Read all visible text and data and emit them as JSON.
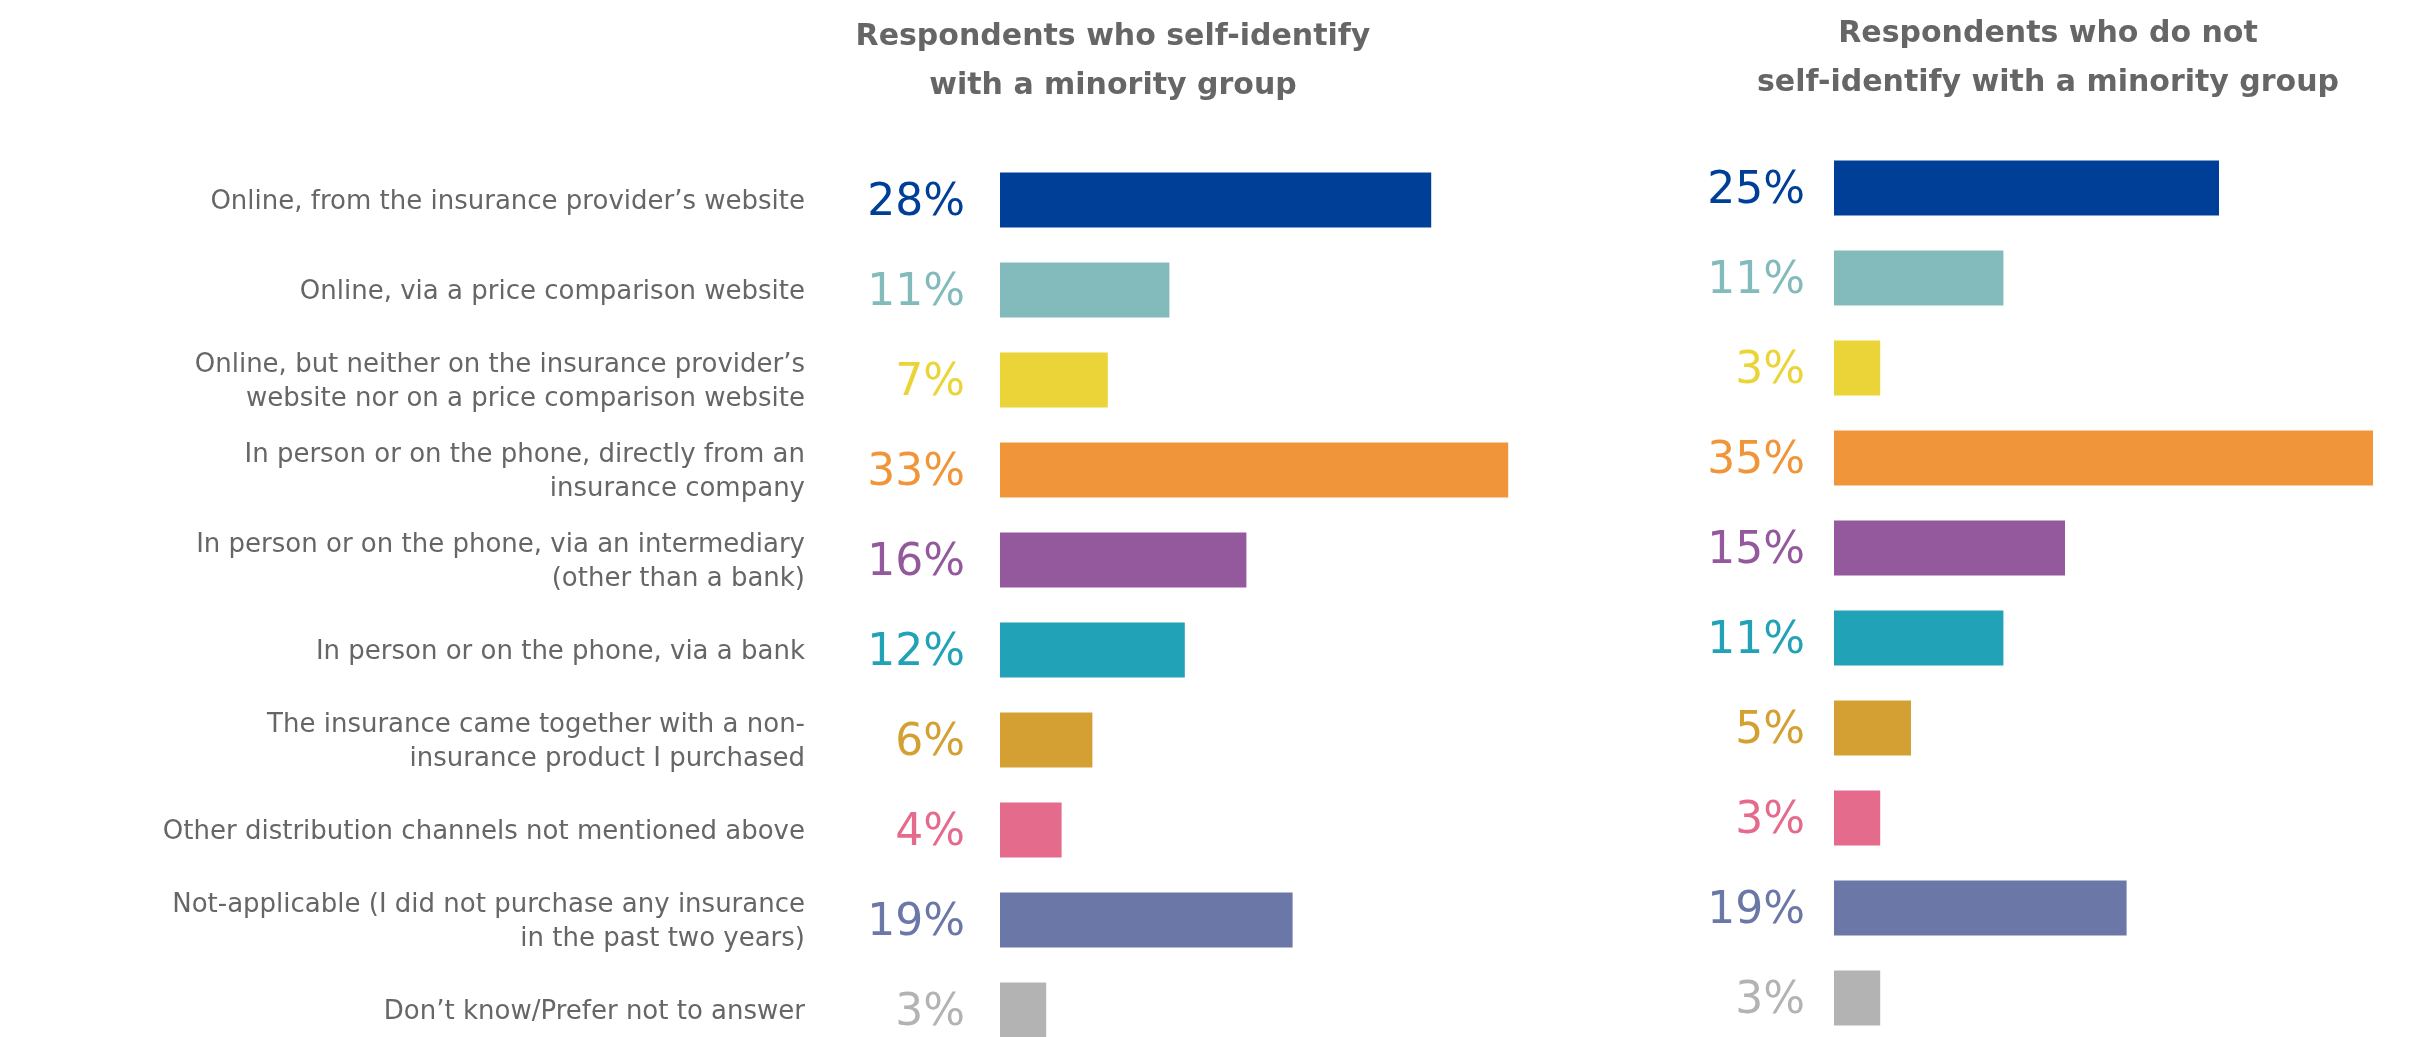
{
  "chart_data": [
    {
      "type": "bar",
      "orientation": "horizontal",
      "title": "Respondents who self-identify\nwith a minority group",
      "categories": [
        "Online, from the insurance provider’s website",
        "Online, via a price comparison website",
        "Online, but neither on the insurance provider’s\nwebsite nor on a price comparison website",
        "In person or on the phone, directly from an\ninsurance company",
        "In person or on the phone, via an intermediary\n(other than a bank)",
        "In person or on the phone, via a bank",
        "The insurance came together with a non-\ninsurance product I purchased",
        "Other distribution channels not mentioned above",
        "Not-applicable (I did not purchase any insurance\nin the past two years)",
        "Don’t know/Prefer not to answer"
      ],
      "values": [
        28,
        11,
        7,
        33,
        16,
        12,
        6,
        4,
        19,
        3
      ],
      "value_labels": [
        "28%",
        "11%",
        "7%",
        "33%",
        "16%",
        "12%",
        "6%",
        "4%",
        "19%",
        "3%"
      ],
      "colors": [
        "#003f97",
        "#83bbbc",
        "#ead437",
        "#f0953a",
        "#93599c",
        "#22a2b7",
        "#d4a033",
        "#e56b8c",
        "#6b78a7",
        "#b3b3b3"
      ]
    },
    {
      "type": "bar",
      "orientation": "horizontal",
      "title": "Respondents who do not\nself-identify with a minority group",
      "categories": [
        null,
        null,
        null,
        null,
        null,
        null,
        null,
        null,
        null,
        null
      ],
      "values": [
        25,
        11,
        3,
        35,
        15,
        11,
        5,
        3,
        19,
        3
      ],
      "value_labels": [
        "25%",
        "11%",
        "3%",
        "35%",
        "15%",
        "11%",
        "5%",
        "3%",
        "19%",
        "3%"
      ],
      "colors": [
        "#003f97",
        "#83bbbc",
        "#ead437",
        "#f0953a",
        "#93599c",
        "#22a2b7",
        "#d4a033",
        "#e56b8c",
        "#6b78a7",
        "#b3b3b3"
      ]
    }
  ]
}
